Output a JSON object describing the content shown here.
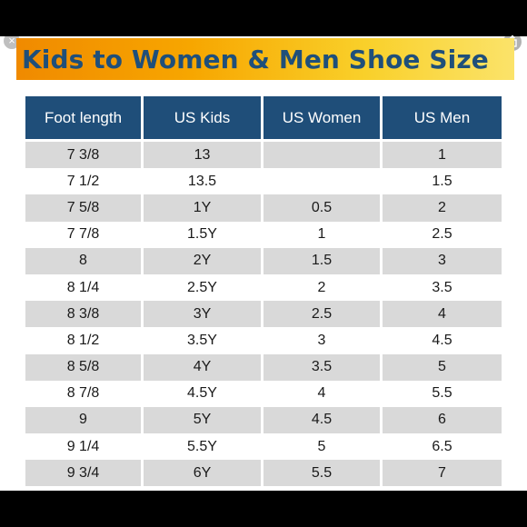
{
  "title": "Kids to Women & Men Shoe Size",
  "colors": {
    "header_bg": "#1f4e79",
    "title_text": "#1f4f7a",
    "banner_start": "#f08a00",
    "banner_end": "#fbe36a",
    "row_shade": "#d9d9d9"
  },
  "icons": {
    "close": "×",
    "share": "share-icon"
  },
  "table": {
    "headers": [
      "Foot length",
      "US Kids",
      "US Women",
      "US Men"
    ],
    "rows": [
      [
        "7 3/8",
        "13",
        "",
        "1"
      ],
      [
        "7 1/2",
        "13.5",
        "",
        "1.5"
      ],
      [
        "7 5/8",
        "1Y",
        "0.5",
        "2"
      ],
      [
        "7 7/8",
        "1.5Y",
        "1",
        "2.5"
      ],
      [
        "8",
        "2Y",
        "1.5",
        "3"
      ],
      [
        "8 1/4",
        "2.5Y",
        "2",
        "3.5"
      ],
      [
        "8 3/8",
        "3Y",
        "2.5",
        "4"
      ],
      [
        "8 1/2",
        "3.5Y",
        "3",
        "4.5"
      ],
      [
        "8 5/8",
        "4Y",
        "3.5",
        "5"
      ],
      [
        "8 7/8",
        "4.5Y",
        "4",
        "5.5"
      ],
      [
        "9",
        "5Y",
        "4.5",
        "6"
      ],
      [
        "9 1/4",
        "5.5Y",
        "5",
        "6.5"
      ],
      [
        "9 3/4",
        "6Y",
        "5.5",
        "7"
      ]
    ]
  }
}
